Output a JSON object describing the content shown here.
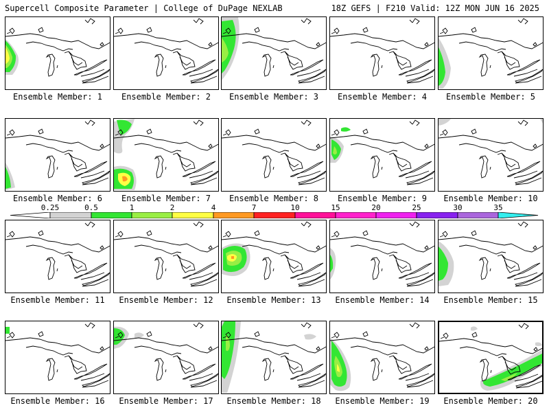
{
  "header": {
    "title": "Supercell Composite Parameter | College of DuPage NEXLAB",
    "run_info": "18Z GEFS | F210 Valid: 12Z MON JUN 16 2025"
  },
  "panels": [
    {
      "label": "Ensemble Member: 1"
    },
    {
      "label": "Ensemble Member: 2"
    },
    {
      "label": "Ensemble Member: 3"
    },
    {
      "label": "Ensemble Member: 4"
    },
    {
      "label": "Ensemble Member: 5"
    },
    {
      "label": "Ensemble Member: 6"
    },
    {
      "label": "Ensemble Member: 7"
    },
    {
      "label": "Ensemble Member: 8"
    },
    {
      "label": "Ensemble Member: 9"
    },
    {
      "label": "Ensemble Member: 10"
    },
    {
      "label": "Ensemble Member: 11"
    },
    {
      "label": "Ensemble Member: 12"
    },
    {
      "label": "Ensemble Member: 13"
    },
    {
      "label": "Ensemble Member: 14"
    },
    {
      "label": "Ensemble Member: 15"
    },
    {
      "label": "Ensemble Member: 16"
    },
    {
      "label": "Ensemble Member: 17"
    },
    {
      "label": "Ensemble Member: 18"
    },
    {
      "label": "Ensemble Member: 19"
    },
    {
      "label": "Ensemble Member: 20"
    }
  ],
  "colorbar": {
    "ticks": [
      "0.25",
      "0.5",
      "1",
      "2",
      "4",
      "7",
      "10",
      "15",
      "20",
      "25",
      "30",
      "35"
    ],
    "colors": [
      "#d3d3d3",
      "#33e633",
      "#99ee44",
      "#ffff44",
      "#ff9922",
      "#ff2222",
      "#ff1199",
      "#ff22cc",
      "#ee22ee",
      "#8822ee",
      "#aa66dd",
      "#33eeee"
    ]
  }
}
